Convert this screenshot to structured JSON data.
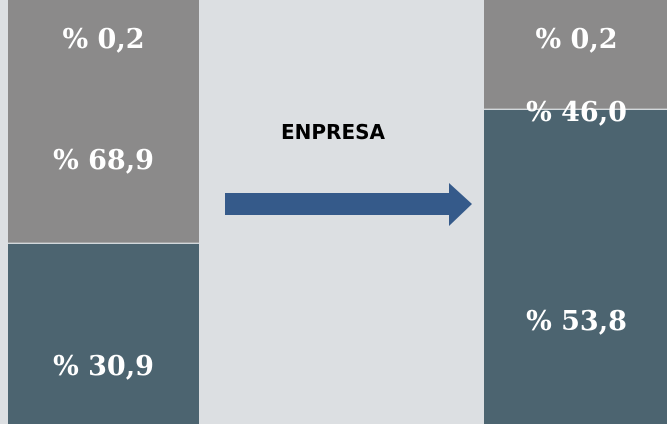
{
  "chart_data": {
    "type": "bar",
    "stacked": true,
    "stack_order": [
      "bottom",
      "middle",
      "top"
    ],
    "bars": [
      {
        "segments": [
          {
            "value": 30.9,
            "label": "% 30,9",
            "color": "#4c6470"
          },
          {
            "value": 68.9,
            "label": "% 68,9",
            "color": "#8b8a8a"
          },
          {
            "value": 0.2,
            "label": "% 0,2",
            "color": "#8b8a8a"
          }
        ]
      },
      {
        "segments": [
          {
            "value": 53.8,
            "label": "% 53,8",
            "color": "#4c6470"
          },
          {
            "value": 46.0,
            "label": "% 46,0",
            "color": "#8b8a8a"
          },
          {
            "value": 0.2,
            "label": "% 0,2",
            "color": "#8b8a8a"
          }
        ]
      }
    ],
    "ylim": [
      0,
      100
    ],
    "annotation": {
      "text": "ENPRESA",
      "arrow_color": "#355a8a"
    },
    "grid": false,
    "legend": false
  },
  "colors": {
    "background": "#dcdfe2",
    "divider": "#ffffff"
  }
}
